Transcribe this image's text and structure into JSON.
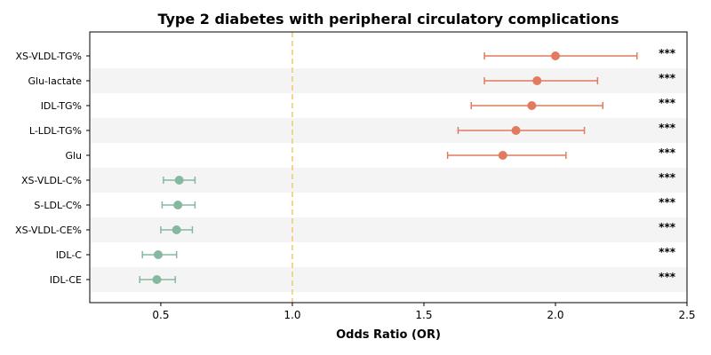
{
  "chart_data": {
    "type": "forest",
    "title": "Type 2 diabetes with peripheral circulatory complications",
    "xlabel": "Odds Ratio (OR)",
    "ylabel": "",
    "xlim": [
      0.23,
      2.5
    ],
    "xticks": [
      "0.5",
      "1.0",
      "1.5",
      "2.0",
      "2.5"
    ],
    "reference_line": 1.0,
    "grid": false,
    "alternating_row_shading": true,
    "colors": {
      "risk": "#E07B5F",
      "protective": "#86B8A0",
      "reference": "#F2C879",
      "shade": "#F4F4F4"
    },
    "rows": [
      {
        "label": "XS-VLDL-TG%",
        "or": 2.0,
        "ci_low": 1.73,
        "ci_high": 2.31,
        "sig": "***",
        "group": "risk"
      },
      {
        "label": "Glu-lactate",
        "or": 1.93,
        "ci_low": 1.73,
        "ci_high": 2.16,
        "sig": "***",
        "group": "risk"
      },
      {
        "label": "IDL-TG%",
        "or": 1.91,
        "ci_low": 1.68,
        "ci_high": 2.18,
        "sig": "***",
        "group": "risk"
      },
      {
        "label": "L-LDL-TG%",
        "or": 1.85,
        "ci_low": 1.63,
        "ci_high": 2.11,
        "sig": "***",
        "group": "risk"
      },
      {
        "label": "Glu",
        "or": 1.8,
        "ci_low": 1.59,
        "ci_high": 2.04,
        "sig": "***",
        "group": "risk"
      },
      {
        "label": "XS-VLDL-C%",
        "or": 0.57,
        "ci_low": 0.51,
        "ci_high": 0.63,
        "sig": "***",
        "group": "protective"
      },
      {
        "label": "S-LDL-C%",
        "or": 0.565,
        "ci_low": 0.505,
        "ci_high": 0.63,
        "sig": "***",
        "group": "protective"
      },
      {
        "label": "XS-VLDL-CE%",
        "or": 0.56,
        "ci_low": 0.5,
        "ci_high": 0.62,
        "sig": "***",
        "group": "protective"
      },
      {
        "label": "IDL-C",
        "or": 0.49,
        "ci_low": 0.43,
        "ci_high": 0.56,
        "sig": "***",
        "group": "protective"
      },
      {
        "label": "IDL-CE",
        "or": 0.485,
        "ci_low": 0.42,
        "ci_high": 0.555,
        "sig": "***",
        "group": "protective"
      }
    ]
  }
}
